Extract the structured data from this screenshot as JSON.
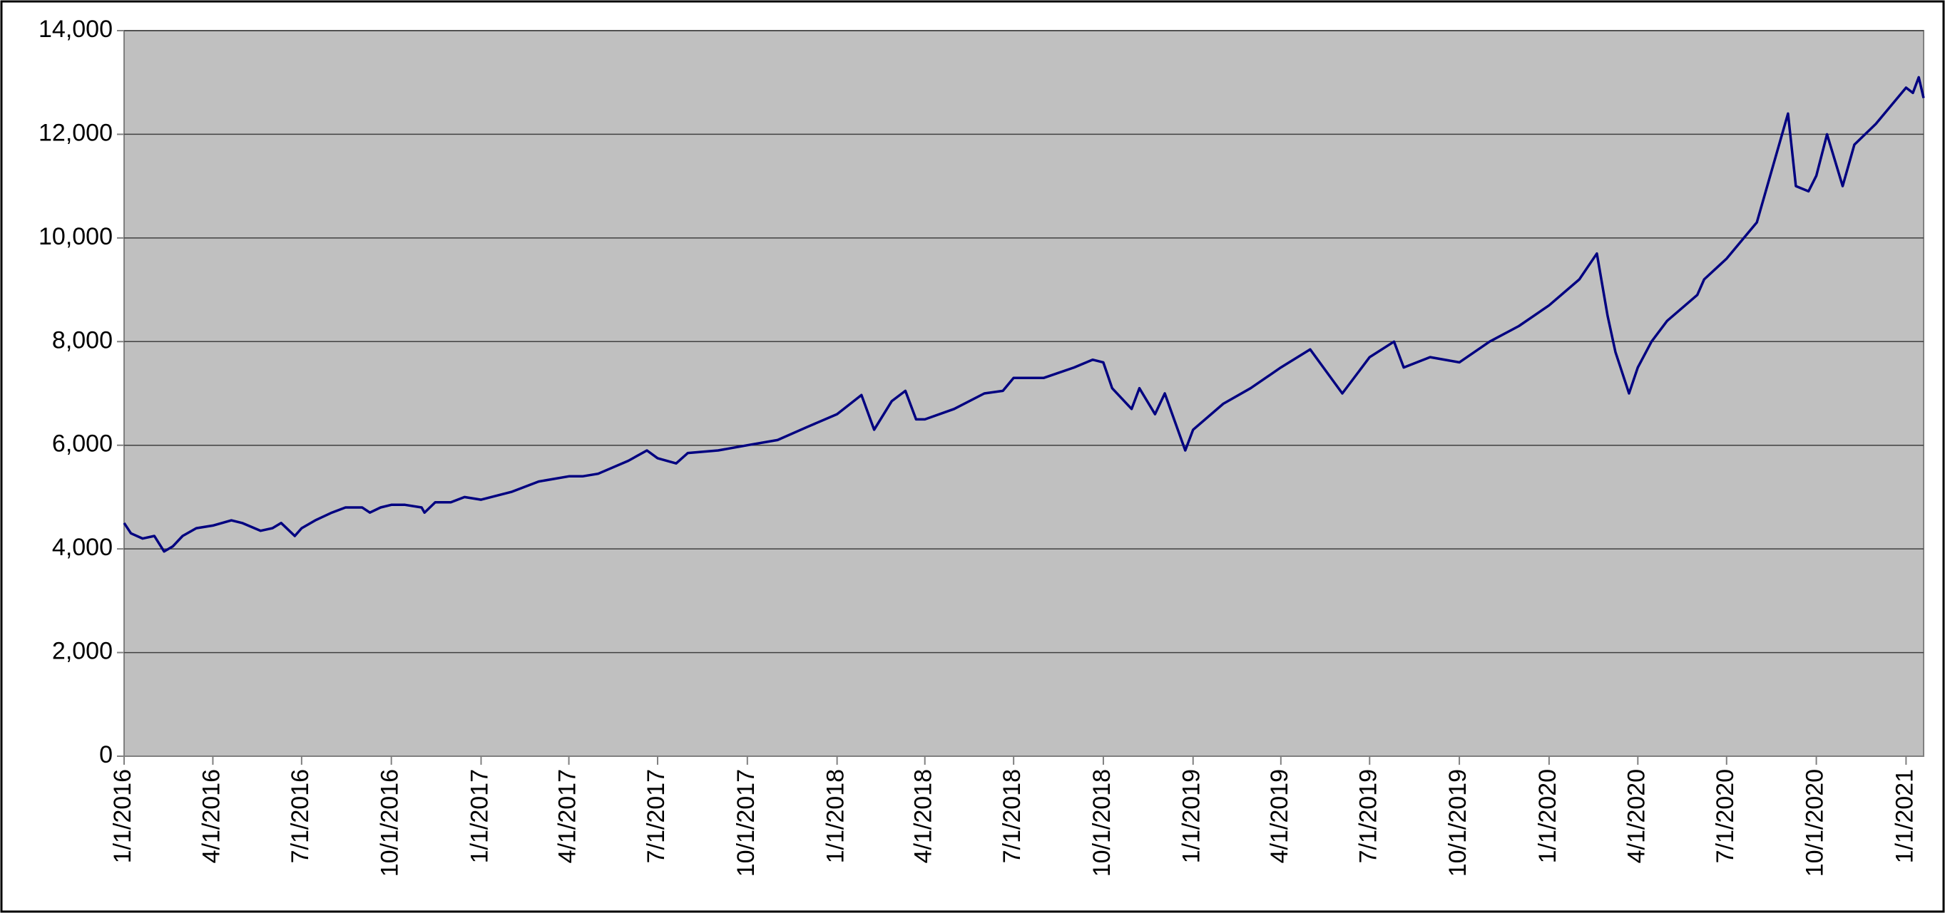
{
  "chart_data": {
    "type": "line",
    "x": [
      "1/1/2016",
      "1/8/2016",
      "1/20/2016",
      "2/1/2016",
      "2/11/2016",
      "2/20/2016",
      "3/1/2016",
      "3/15/2016",
      "4/1/2016",
      "4/20/2016",
      "5/1/2016",
      "5/20/2016",
      "6/1/2016",
      "6/10/2016",
      "6/24/2016",
      "7/1/2016",
      "7/15/2016",
      "8/1/2016",
      "8/15/2016",
      "9/1/2016",
      "9/9/2016",
      "9/20/2016",
      "10/1/2016",
      "10/15/2016",
      "11/1/2016",
      "11/4/2016",
      "11/15/2016",
      "12/1/2016",
      "12/15/2016",
      "1/1/2017",
      "2/1/2017",
      "3/1/2017",
      "4/1/2017",
      "4/15/2017",
      "5/1/2017",
      "6/1/2017",
      "6/20/2017",
      "7/1/2017",
      "7/20/2017",
      "8/1/2017",
      "9/1/2017",
      "10/1/2017",
      "11/1/2017",
      "12/1/2017",
      "1/1/2018",
      "1/26/2018",
      "2/8/2018",
      "2/26/2018",
      "3/12/2018",
      "3/23/2018",
      "4/1/2018",
      "5/1/2018",
      "6/1/2018",
      "6/20/2018",
      "7/1/2018",
      "8/1/2018",
      "9/1/2018",
      "9/20/2018",
      "10/1/2018",
      "10/10/2018",
      "10/30/2018",
      "11/7/2018",
      "11/23/2018",
      "12/3/2018",
      "12/24/2018",
      "1/1/2019",
      "2/1/2019",
      "3/1/2019",
      "4/1/2019",
      "5/1/2019",
      "6/3/2019",
      "7/1/2019",
      "7/26/2019",
      "8/5/2019",
      "9/1/2019",
      "10/1/2019",
      "11/1/2019",
      "12/1/2019",
      "1/1/2020",
      "2/1/2020",
      "2/19/2020",
      "3/1/2020",
      "3/9/2020",
      "3/23/2020",
      "4/1/2020",
      "4/15/2020",
      "5/1/2020",
      "6/1/2020",
      "6/8/2020",
      "7/1/2020",
      "8/1/2020",
      "9/2/2020",
      "9/10/2020",
      "9/23/2020",
      "10/1/2020",
      "10/12/2020",
      "10/28/2020",
      "11/9/2020",
      "12/1/2020",
      "1/1/2021",
      "1/8/2021",
      "1/14/2021",
      "1/19/2021"
    ],
    "series": [
      {
        "color": "#000080",
        "values": [
          4500,
          4300,
          4200,
          4250,
          3950,
          4050,
          4250,
          4400,
          4450,
          4550,
          4500,
          4350,
          4400,
          4500,
          4250,
          4400,
          4550,
          4700,
          4800,
          4800,
          4700,
          4800,
          4850,
          4850,
          4800,
          4700,
          4900,
          4900,
          5000,
          4950,
          5100,
          5300,
          5400,
          5400,
          5450,
          5700,
          5900,
          5750,
          5650,
          5850,
          5900,
          6000,
          6100,
          6350,
          6600,
          6970,
          6300,
          6850,
          7050,
          6500,
          6500,
          6700,
          7000,
          7050,
          7300,
          7300,
          7500,
          7650,
          7600,
          7100,
          6700,
          7100,
          6600,
          7000,
          5900,
          6300,
          6800,
          7100,
          7500,
          7850,
          7000,
          7700,
          8000,
          7500,
          7700,
          7600,
          8000,
          8300,
          8700,
          9200,
          9700,
          8500,
          7800,
          7000,
          7500,
          8000,
          8400,
          8900,
          9200,
          9600,
          10300,
          12400,
          11000,
          10900,
          11200,
          12000,
          11000,
          11800,
          12200,
          12900,
          12800,
          13100,
          12700
        ]
      }
    ],
    "xlim": [
      "1/1/2016",
      "1/19/2021"
    ],
    "xticks": [
      "1/1/2016",
      "4/1/2016",
      "7/1/2016",
      "10/1/2016",
      "1/1/2017",
      "4/1/2017",
      "7/1/2017",
      "10/1/2017",
      "1/1/2018",
      "4/1/2018",
      "7/1/2018",
      "10/1/2018",
      "1/1/2019",
      "4/1/2019",
      "7/1/2019",
      "10/1/2019",
      "1/1/2020",
      "4/1/2020",
      "7/1/2020",
      "10/1/2020",
      "1/1/2021"
    ],
    "ylim": [
      0,
      14000
    ],
    "yticks": [
      0,
      {
        "value": 2000,
        "label": "2,000"
      },
      {
        "value": 4000,
        "label": "4,000"
      },
      {
        "value": 6000,
        "label": "6,000"
      },
      {
        "value": 8000,
        "label": "8,000"
      },
      {
        "value": 10000,
        "label": "10,000"
      },
      {
        "value": 12000,
        "label": "12,000"
      },
      {
        "value": 14000,
        "label": "14,000"
      }
    ],
    "grid": true
  }
}
